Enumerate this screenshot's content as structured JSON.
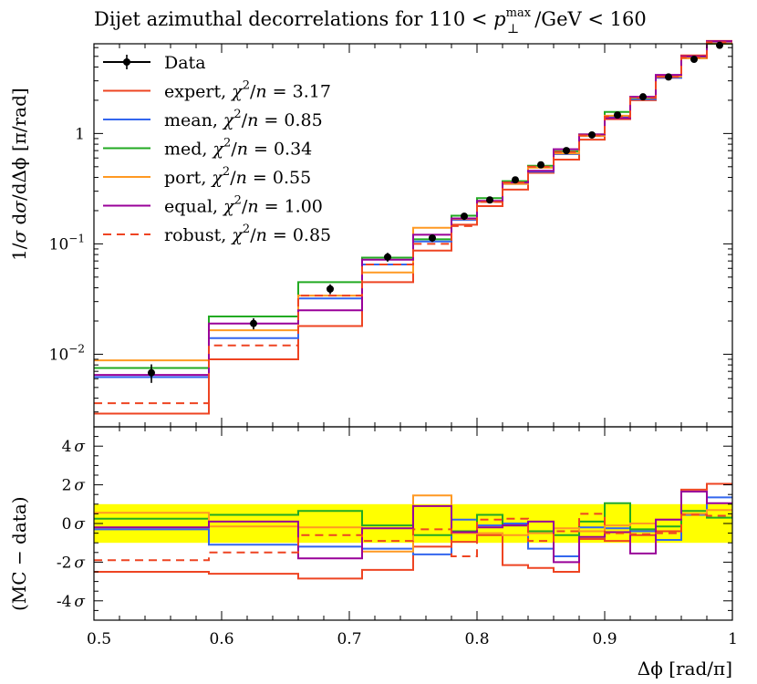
{
  "chart_data": {
    "type": "line",
    "title": "Dijet azimuthal decorrelations for 110 < p⊥max/GeV < 160",
    "title_parts": {
      "main": "Dijet azimuthal decorrelations for 110 < ",
      "p": "p",
      "sup": "max",
      "sub": "⊥",
      "rest": "/GeV < 160"
    },
    "xlabel": "Δϕ [rad/π]",
    "xlim": [
      0.5,
      1.0
    ],
    "x_ticks": [
      "0.5",
      "0.6",
      "0.7",
      "0.8",
      "0.9",
      "1"
    ],
    "bin_edges": [
      0.5,
      0.59,
      0.66,
      0.71,
      0.75,
      0.78,
      0.8,
      0.82,
      0.84,
      0.86,
      0.88,
      0.9,
      0.92,
      0.94,
      0.96,
      0.98,
      1.0
    ],
    "main_panel": {
      "ylabel": "1/σ dσ/dΔϕ [π/rad]",
      "ylabel_parts": {
        "pre": "1/",
        "sigma": "σ",
        "mid": " d",
        "sigma2": "σ",
        "post": "/dΔϕ [π/rad]"
      },
      "yscale": "log",
      "ylim": [
        0.0022,
        6.5
      ],
      "y_ticks": [
        {
          "base": "10",
          "exp": "−2",
          "value": 0.01
        },
        {
          "base": "10",
          "exp": "−1",
          "value": 0.1
        },
        {
          "base": "1",
          "exp": "",
          "value": 1
        }
      ],
      "data": {
        "name": "Data",
        "x": [
          0.545,
          0.625,
          0.685,
          0.73,
          0.765,
          0.79,
          0.81,
          0.83,
          0.85,
          0.87,
          0.89,
          0.91,
          0.93,
          0.95,
          0.97,
          0.99
        ],
        "y": [
          0.0068,
          0.019,
          0.039,
          0.076,
          0.113,
          0.178,
          0.25,
          0.38,
          0.52,
          0.7,
          0.97,
          1.47,
          2.15,
          3.25,
          4.7,
          6.3
        ],
        "yerr": [
          0.0013,
          0.0022,
          0.004,
          0.007,
          0.009,
          0.013,
          0.016,
          0.022,
          0.028,
          0.035,
          0.045,
          0.065,
          0.09,
          0.13,
          0.18,
          0.24
        ]
      },
      "series": [
        {
          "name": "expert",
          "chi2": "3.17",
          "color": "#ee4422",
          "dashed": false,
          "values": [
            0.0029,
            0.009,
            0.018,
            0.045,
            0.087,
            0.149,
            0.22,
            0.31,
            0.44,
            0.58,
            0.88,
            1.35,
            2.0,
            3.2,
            5.1,
            6.9
          ]
        },
        {
          "name": "mean",
          "chi2": "0.85",
          "color": "#3366ee",
          "dashed": false,
          "values": [
            0.0062,
            0.014,
            0.032,
            0.065,
            0.105,
            0.165,
            0.24,
            0.35,
            0.45,
            0.65,
            0.95,
            1.42,
            2.05,
            3.2,
            4.8,
            6.6
          ]
        },
        {
          "name": "med",
          "chi2": "0.34",
          "color": "#22aa22",
          "dashed": false,
          "values": [
            0.0075,
            0.022,
            0.045,
            0.075,
            0.11,
            0.18,
            0.26,
            0.37,
            0.51,
            0.69,
            0.98,
            1.57,
            2.1,
            3.3,
            4.9,
            6.5
          ]
        },
        {
          "name": "port",
          "chi2": "0.55",
          "color": "#ff9922",
          "dashed": false,
          "values": [
            0.0088,
            0.0165,
            0.034,
            0.055,
            0.14,
            0.168,
            0.24,
            0.35,
            0.49,
            0.66,
            0.95,
            1.45,
            2.12,
            3.28,
            4.8,
            6.55
          ]
        },
        {
          "name": "equal",
          "chi2": "1.00",
          "color": "#990099",
          "dashed": false,
          "values": [
            0.0065,
            0.019,
            0.025,
            0.072,
            0.121,
            0.17,
            0.245,
            0.36,
            0.46,
            0.72,
            0.98,
            1.38,
            2.15,
            3.4,
            5.0,
            6.85
          ]
        },
        {
          "name": "robust",
          "chi2": "0.85",
          "color": "#ee4422",
          "dashed": true,
          "values": [
            0.0036,
            0.012,
            0.034,
            0.065,
            0.1,
            0.145,
            0.24,
            0.36,
            0.5,
            0.68,
            0.96,
            1.42,
            2.1,
            3.25,
            4.9,
            6.7
          ]
        }
      ]
    },
    "ratio_panel": {
      "ylabel": "(MC − data)",
      "ylim": [
        -5.0,
        5.0
      ],
      "y_ticks": [
        "4",
        "2",
        "0",
        "-2",
        "-4"
      ],
      "y_tick_unit": "σ",
      "band": [
        -1,
        1
      ],
      "band_color": "#ffff00",
      "series": [
        {
          "name": "expert",
          "values": [
            -2.5,
            -2.6,
            -2.85,
            -2.4,
            -1.2,
            -0.95,
            -0.6,
            -2.15,
            -2.3,
            -2.5,
            -0.8,
            -0.9,
            -0.6,
            -0.4,
            1.75,
            2.05
          ]
        },
        {
          "name": "mean",
          "values": [
            -0.3,
            -1.1,
            -1.2,
            -1.3,
            -1.6,
            0.2,
            -0.1,
            0.0,
            -1.3,
            -1.7,
            -0.2,
            -0.25,
            -0.4,
            -0.85,
            0.45,
            1.35
          ]
        },
        {
          "name": "med",
          "values": [
            0.25,
            0.45,
            0.65,
            -0.1,
            -0.6,
            -0.4,
            0.45,
            -0.1,
            -0.4,
            -0.6,
            0.1,
            1.05,
            -0.3,
            -0.15,
            0.65,
            0.3
          ]
        },
        {
          "name": "port",
          "values": [
            0.55,
            -0.15,
            -0.2,
            -1.45,
            1.45,
            -0.5,
            -0.5,
            -0.6,
            -0.5,
            -0.25,
            -0.4,
            -0.1,
            0.0,
            0.2,
            0.5,
            0.7
          ]
        },
        {
          "name": "equal",
          "values": [
            -0.2,
            0.1,
            -1.8,
            -0.25,
            0.9,
            -0.45,
            -0.2,
            -0.1,
            0.1,
            -2.0,
            -0.7,
            -0.45,
            -1.55,
            0.2,
            1.65,
            1.05
          ]
        },
        {
          "name": "robust",
          "values": [
            -1.9,
            -1.5,
            -0.6,
            -0.9,
            -0.3,
            -1.7,
            0.2,
            0.25,
            -0.9,
            -0.4,
            0.5,
            -0.5,
            -0.55,
            -0.5,
            0.45,
            0.4
          ]
        }
      ]
    },
    "legend_position": "top-left"
  }
}
